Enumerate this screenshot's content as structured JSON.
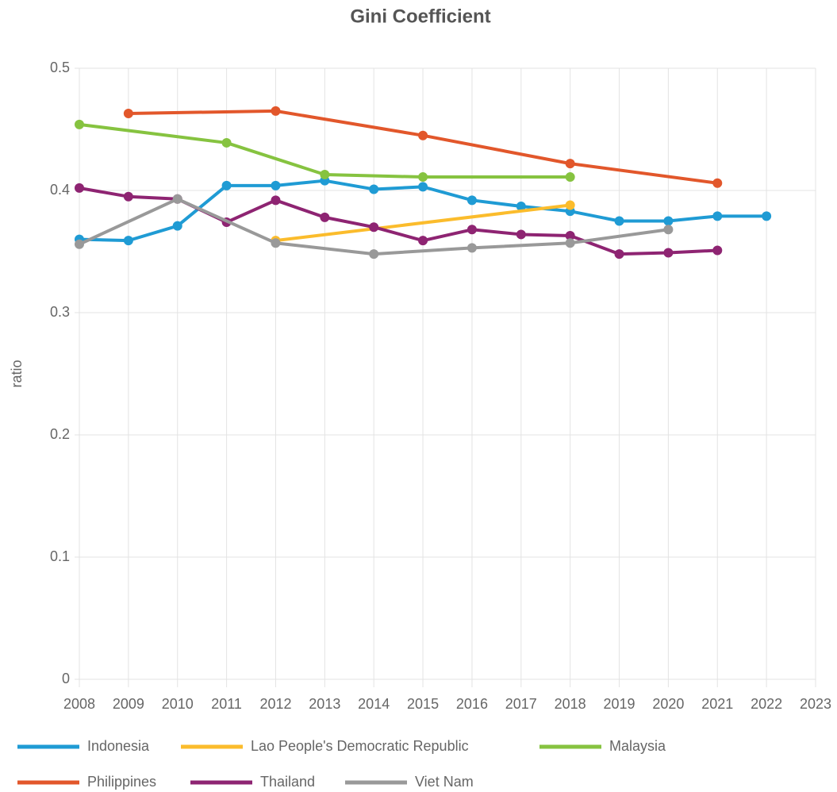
{
  "chart_data": {
    "type": "line",
    "title": "Gini Coefficient",
    "y_label": "ratio",
    "xlim": [
      2008,
      2023
    ],
    "xticks": [
      2008,
      2009,
      2010,
      2011,
      2012,
      2013,
      2014,
      2015,
      2016,
      2017,
      2018,
      2019,
      2020,
      2021,
      2022,
      2023
    ],
    "ylim": [
      0,
      0.5
    ],
    "yticks": [
      0,
      0.1,
      0.2,
      0.3,
      0.4,
      0.5
    ],
    "grid": true,
    "legend": "bottom",
    "series": [
      {
        "name": "Indonesia",
        "color": "#1f9bd4",
        "x": [
          2008,
          2009,
          2010,
          2011,
          2012,
          2013,
          2014,
          2015,
          2016,
          2017,
          2018,
          2019,
          2020,
          2021,
          2022
        ],
        "values": [
          0.36,
          0.359,
          0.371,
          0.404,
          0.404,
          0.408,
          0.401,
          0.403,
          0.392,
          0.387,
          0.383,
          0.375,
          0.375,
          0.379,
          0.379
        ]
      },
      {
        "name": "Lao People's Democratic Republic",
        "color": "#fbbc2c",
        "x": [
          2012,
          2018
        ],
        "values": [
          0.359,
          0.388
        ]
      },
      {
        "name": "Malaysia",
        "color": "#86c340",
        "x": [
          2008,
          2011,
          2013,
          2015,
          2018
        ],
        "values": [
          0.454,
          0.439,
          0.413,
          0.411,
          0.411
        ]
      },
      {
        "name": "Philippines",
        "color": "#e2572b",
        "x": [
          2009,
          2012,
          2015,
          2018,
          2021
        ],
        "values": [
          0.463,
          0.465,
          0.445,
          0.422,
          0.406
        ]
      },
      {
        "name": "Thailand",
        "color": "#8e2472",
        "x": [
          2008,
          2009,
          2010,
          2011,
          2012,
          2013,
          2014,
          2015,
          2016,
          2017,
          2018,
          2019,
          2020,
          2021
        ],
        "values": [
          0.402,
          0.395,
          0.393,
          0.374,
          0.392,
          0.378,
          0.37,
          0.359,
          0.368,
          0.364,
          0.363,
          0.348,
          0.349,
          0.351
        ]
      },
      {
        "name": "Viet Nam",
        "color": "#999999",
        "x": [
          2008,
          2010,
          2012,
          2014,
          2016,
          2018,
          2020
        ],
        "values": [
          0.356,
          0.393,
          0.357,
          0.348,
          0.353,
          0.357,
          0.368
        ]
      }
    ]
  }
}
